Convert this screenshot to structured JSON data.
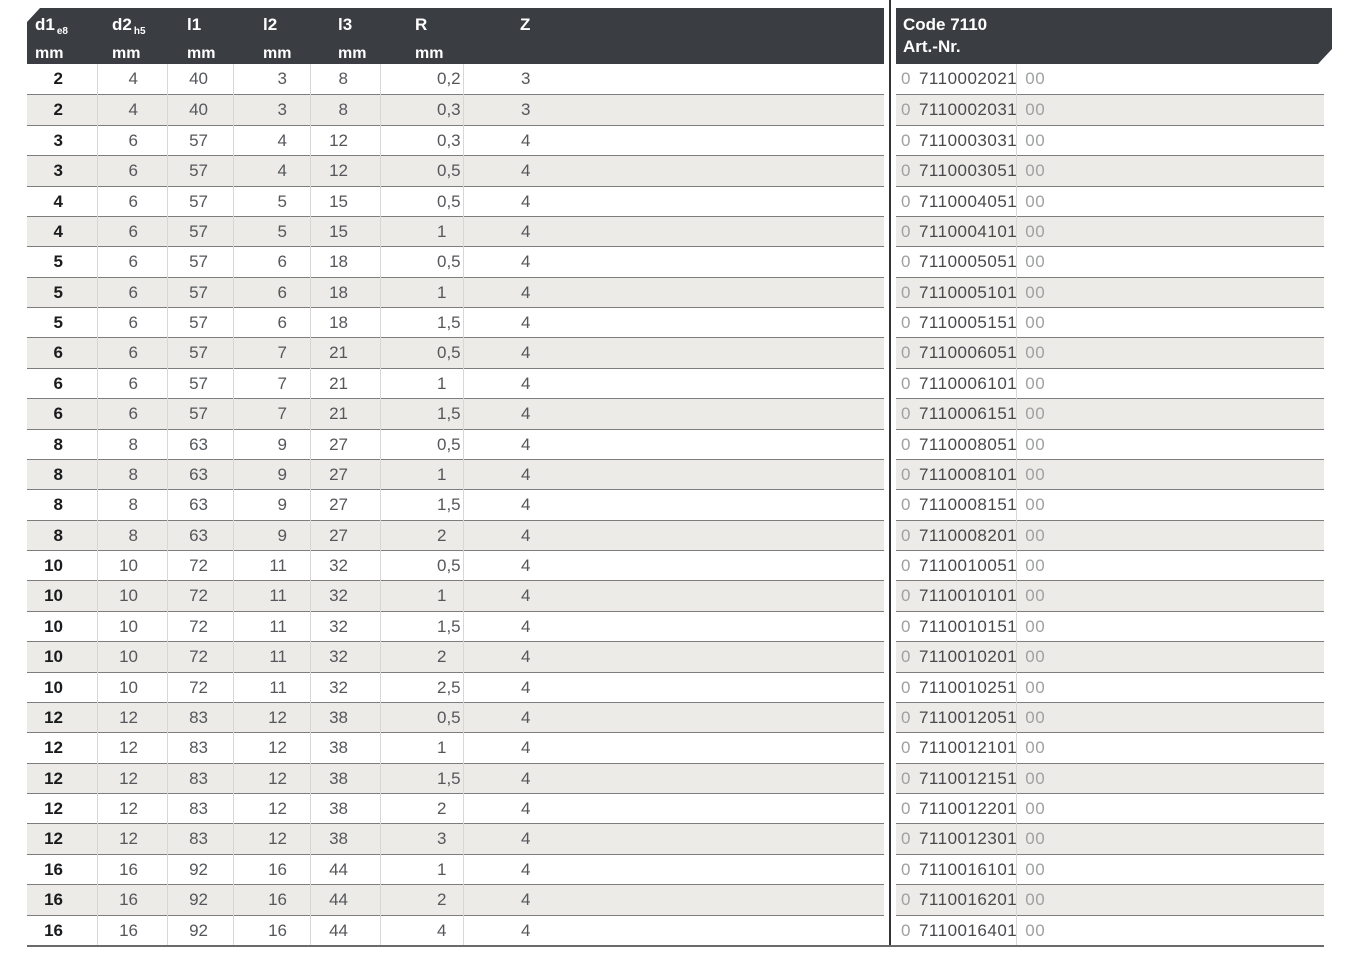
{
  "table": {
    "header": {
      "cols": [
        {
          "label": "d1",
          "sub": "e8",
          "unit": "mm"
        },
        {
          "label": "d2",
          "sub": "h5",
          "unit": "mm"
        },
        {
          "label": "l1",
          "sub": "",
          "unit": "mm"
        },
        {
          "label": "l2",
          "sub": "",
          "unit": "mm"
        },
        {
          "label": "l3",
          "sub": "",
          "unit": "mm"
        },
        {
          "label": "R",
          "sub": "",
          "unit": "mm"
        },
        {
          "label": "Z",
          "sub": "",
          "unit": ""
        }
      ],
      "code_title": "Code 7110",
      "code_sub": "Art.-Nr."
    },
    "rows": [
      {
        "d1": "2",
        "d2": "4",
        "l1": "40",
        "l2": "3",
        "l3": "8",
        "r": "0,2",
        "z": "3",
        "art_prefix": "0",
        "art_nr": "7110002021",
        "art_suffix": "00"
      },
      {
        "d1": "2",
        "d2": "4",
        "l1": "40",
        "l2": "3",
        "l3": "8",
        "r": "0,3",
        "z": "3",
        "art_prefix": "0",
        "art_nr": "7110002031",
        "art_suffix": "00"
      },
      {
        "d1": "3",
        "d2": "6",
        "l1": "57",
        "l2": "4",
        "l3": "12",
        "r": "0,3",
        "z": "4",
        "art_prefix": "0",
        "art_nr": "7110003031",
        "art_suffix": "00"
      },
      {
        "d1": "3",
        "d2": "6",
        "l1": "57",
        "l2": "4",
        "l3": "12",
        "r": "0,5",
        "z": "4",
        "art_prefix": "0",
        "art_nr": "7110003051",
        "art_suffix": "00"
      },
      {
        "d1": "4",
        "d2": "6",
        "l1": "57",
        "l2": "5",
        "l3": "15",
        "r": "0,5",
        "z": "4",
        "art_prefix": "0",
        "art_nr": "7110004051",
        "art_suffix": "00"
      },
      {
        "d1": "4",
        "d2": "6",
        "l1": "57",
        "l2": "5",
        "l3": "15",
        "r": "1",
        "z": "4",
        "art_prefix": "0",
        "art_nr": "7110004101",
        "art_suffix": "00"
      },
      {
        "d1": "5",
        "d2": "6",
        "l1": "57",
        "l2": "6",
        "l3": "18",
        "r": "0,5",
        "z": "4",
        "art_prefix": "0",
        "art_nr": "7110005051",
        "art_suffix": "00"
      },
      {
        "d1": "5",
        "d2": "6",
        "l1": "57",
        "l2": "6",
        "l3": "18",
        "r": "1",
        "z": "4",
        "art_prefix": "0",
        "art_nr": "7110005101",
        "art_suffix": "00"
      },
      {
        "d1": "5",
        "d2": "6",
        "l1": "57",
        "l2": "6",
        "l3": "18",
        "r": "1,5",
        "z": "4",
        "art_prefix": "0",
        "art_nr": "7110005151",
        "art_suffix": "00"
      },
      {
        "d1": "6",
        "d2": "6",
        "l1": "57",
        "l2": "7",
        "l3": "21",
        "r": "0,5",
        "z": "4",
        "art_prefix": "0",
        "art_nr": "7110006051",
        "art_suffix": "00"
      },
      {
        "d1": "6",
        "d2": "6",
        "l1": "57",
        "l2": "7",
        "l3": "21",
        "r": "1",
        "z": "4",
        "art_prefix": "0",
        "art_nr": "7110006101",
        "art_suffix": "00"
      },
      {
        "d1": "6",
        "d2": "6",
        "l1": "57",
        "l2": "7",
        "l3": "21",
        "r": "1,5",
        "z": "4",
        "art_prefix": "0",
        "art_nr": "7110006151",
        "art_suffix": "00"
      },
      {
        "d1": "8",
        "d2": "8",
        "l1": "63",
        "l2": "9",
        "l3": "27",
        "r": "0,5",
        "z": "4",
        "art_prefix": "0",
        "art_nr": "7110008051",
        "art_suffix": "00"
      },
      {
        "d1": "8",
        "d2": "8",
        "l1": "63",
        "l2": "9",
        "l3": "27",
        "r": "1",
        "z": "4",
        "art_prefix": "0",
        "art_nr": "7110008101",
        "art_suffix": "00"
      },
      {
        "d1": "8",
        "d2": "8",
        "l1": "63",
        "l2": "9",
        "l3": "27",
        "r": "1,5",
        "z": "4",
        "art_prefix": "0",
        "art_nr": "7110008151",
        "art_suffix": "00"
      },
      {
        "d1": "8",
        "d2": "8",
        "l1": "63",
        "l2": "9",
        "l3": "27",
        "r": "2",
        "z": "4",
        "art_prefix": "0",
        "art_nr": "7110008201",
        "art_suffix": "00"
      },
      {
        "d1": "10",
        "d2": "10",
        "l1": "72",
        "l2": "11",
        "l3": "32",
        "r": "0,5",
        "z": "4",
        "art_prefix": "0",
        "art_nr": "7110010051",
        "art_suffix": "00"
      },
      {
        "d1": "10",
        "d2": "10",
        "l1": "72",
        "l2": "11",
        "l3": "32",
        "r": "1",
        "z": "4",
        "art_prefix": "0",
        "art_nr": "7110010101",
        "art_suffix": "00"
      },
      {
        "d1": "10",
        "d2": "10",
        "l1": "72",
        "l2": "11",
        "l3": "32",
        "r": "1,5",
        "z": "4",
        "art_prefix": "0",
        "art_nr": "7110010151",
        "art_suffix": "00"
      },
      {
        "d1": "10",
        "d2": "10",
        "l1": "72",
        "l2": "11",
        "l3": "32",
        "r": "2",
        "z": "4",
        "art_prefix": "0",
        "art_nr": "7110010201",
        "art_suffix": "00"
      },
      {
        "d1": "10",
        "d2": "10",
        "l1": "72",
        "l2": "11",
        "l3": "32",
        "r": "2,5",
        "z": "4",
        "art_prefix": "0",
        "art_nr": "7110010251",
        "art_suffix": "00"
      },
      {
        "d1": "12",
        "d2": "12",
        "l1": "83",
        "l2": "12",
        "l3": "38",
        "r": "0,5",
        "z": "4",
        "art_prefix": "0",
        "art_nr": "7110012051",
        "art_suffix": "00"
      },
      {
        "d1": "12",
        "d2": "12",
        "l1": "83",
        "l2": "12",
        "l3": "38",
        "r": "1",
        "z": "4",
        "art_prefix": "0",
        "art_nr": "7110012101",
        "art_suffix": "00"
      },
      {
        "d1": "12",
        "d2": "12",
        "l1": "83",
        "l2": "12",
        "l3": "38",
        "r": "1,5",
        "z": "4",
        "art_prefix": "0",
        "art_nr": "7110012151",
        "art_suffix": "00"
      },
      {
        "d1": "12",
        "d2": "12",
        "l1": "83",
        "l2": "12",
        "l3": "38",
        "r": "2",
        "z": "4",
        "art_prefix": "0",
        "art_nr": "7110012201",
        "art_suffix": "00"
      },
      {
        "d1": "12",
        "d2": "12",
        "l1": "83",
        "l2": "12",
        "l3": "38",
        "r": "3",
        "z": "4",
        "art_prefix": "0",
        "art_nr": "7110012301",
        "art_suffix": "00"
      },
      {
        "d1": "16",
        "d2": "16",
        "l1": "92",
        "l2": "16",
        "l3": "44",
        "r": "1",
        "z": "4",
        "art_prefix": "0",
        "art_nr": "7110016101",
        "art_suffix": "00"
      },
      {
        "d1": "16",
        "d2": "16",
        "l1": "92",
        "l2": "16",
        "l3": "44",
        "r": "2",
        "z": "4",
        "art_prefix": "0",
        "art_nr": "7110016201",
        "art_suffix": "00"
      },
      {
        "d1": "16",
        "d2": "16",
        "l1": "92",
        "l2": "16",
        "l3": "44",
        "r": "4",
        "z": "4",
        "art_prefix": "0",
        "art_nr": "7110016401",
        "art_suffix": "00"
      }
    ]
  },
  "colors": {
    "header_bg": "#3A3E43",
    "row_alt_bg": "#ECEBE8",
    "rule": "#7D7D7D",
    "faint": "#D8D7D5",
    "divider": "#303437",
    "text_gray": "#55575B",
    "text_black": "#1A1B1D",
    "art_side": "#9FA0A1",
    "art_main": "#48494C",
    "bottom": "#6A6A6A"
  }
}
